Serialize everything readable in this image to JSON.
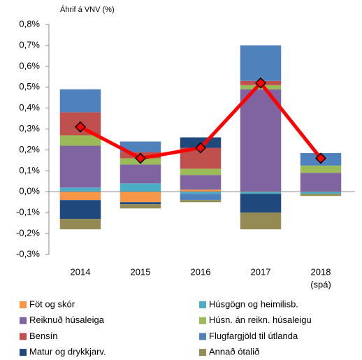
{
  "chart_data": {
    "type": "bar",
    "stacked": true,
    "y_label": "Áhrif á VNV (%)",
    "categories": [
      "2014",
      "2015",
      "2016",
      "2017",
      "2018"
    ],
    "category_note": "(spá)",
    "ylim": [
      -0.3,
      0.8
    ],
    "yticks": [
      {
        "value": 0.8,
        "label": "0,8%"
      },
      {
        "value": 0.7,
        "label": "0,7%"
      },
      {
        "value": 0.6,
        "label": "0,6%"
      },
      {
        "value": 0.5,
        "label": "0,5%"
      },
      {
        "value": 0.4,
        "label": "0,4%"
      },
      {
        "value": 0.3,
        "label": "0,3%"
      },
      {
        "value": 0.2,
        "label": "0,2%"
      },
      {
        "value": 0.1,
        "label": "0,1%"
      },
      {
        "value": 0,
        "label": "0,0%"
      },
      {
        "value": -0.1,
        "label": "-0,1%"
      },
      {
        "value": -0.2,
        "label": "-0,2%"
      },
      {
        "value": -0.3,
        "label": "-0,3%"
      }
    ],
    "series": [
      {
        "name": "Föt og skór",
        "color": "#f79646",
        "values": [
          -0.04,
          -0.05,
          0.01,
          0,
          0
        ]
      },
      {
        "name": "Húsgögn og heimilisb.",
        "color": "#4bacc6",
        "values": [
          0.02,
          0.04,
          -0.01,
          -0.01,
          -0.01
        ]
      },
      {
        "name": "Reiknuð húsaleiga",
        "color": "#8064a2",
        "values": [
          0.2,
          0.09,
          0.07,
          0.49,
          0.09
        ]
      },
      {
        "name": "Húsn. án reikn. húsaleigu",
        "color": "#9bbb59",
        "values": [
          0.05,
          0.03,
          0.03,
          0.02,
          0.035
        ]
      },
      {
        "name": "Bensín",
        "color": "#c0504d",
        "values": [
          0.11,
          0.03,
          0.1,
          0.02,
          0
        ]
      },
      {
        "name": "Flugfargjöld til útlanda",
        "color": "#4f81bd",
        "values": [
          0.11,
          0.05,
          -0.03,
          0.17,
          0.06
        ]
      },
      {
        "name": "Matur og drykkjarv.",
        "color": "#1f497d",
        "values": [
          -0.09,
          -0.01,
          0.05,
          -0.09,
          0
        ]
      },
      {
        "name": "Annað ótalið",
        "color": "#948a54",
        "values": [
          -0.05,
          -0.02,
          -0.01,
          -0.08,
          -0.01
        ]
      }
    ],
    "line": {
      "color": "#ff0000",
      "values": [
        0.31,
        0.16,
        0.21,
        0.52,
        0.16
      ]
    }
  }
}
